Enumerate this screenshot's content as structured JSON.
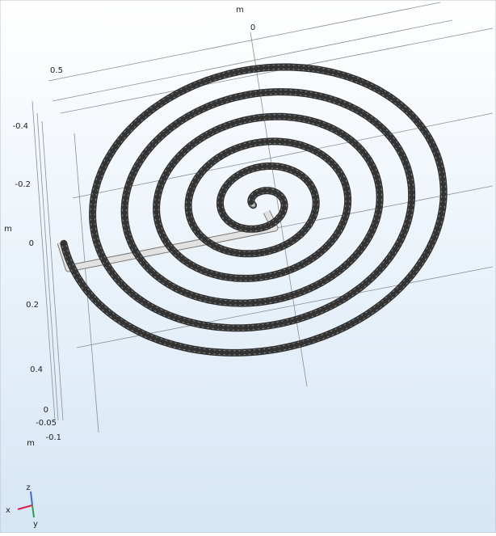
{
  "axes": {
    "top": {
      "unit": "m",
      "ticks": [
        "0",
        "0.5"
      ]
    },
    "left": {
      "unit": "m",
      "ticks": [
        "-0.4",
        "-0.2",
        "0",
        "0.2",
        "0.4"
      ]
    },
    "vertical": {
      "unit": "m",
      "ticks": [
        "0",
        "-0.05",
        "-0.1"
      ]
    }
  },
  "triad": {
    "z": "z",
    "x": "x",
    "y": "y"
  }
}
